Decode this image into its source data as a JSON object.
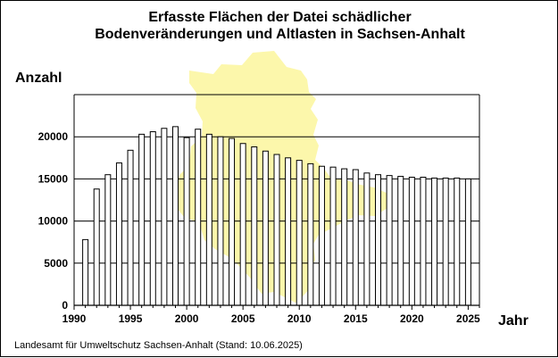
{
  "title_line1": "Erfasste Flächen der Datei schädlicher",
  "title_line2": "Bodenveränderungen und Altlasten in Sachsen-Anhalt",
  "footer": "Landesamt für Umweltschutz Sachsen-Anhalt (Stand: 10.06.2025)",
  "colors": {
    "bar_fill": "#ffffff",
    "bar_stroke": "#000000",
    "map_fill": "#fcf7ab",
    "grid": "#000000"
  },
  "chart_data": {
    "type": "bar",
    "title": "Erfasste Flächen der Datei schädlicher Bodenveränderungen und Altlasten in Sachsen-Anhalt",
    "xlabel": "Jahr",
    "ylabel": "Anzahl",
    "x": [
      1991,
      1992,
      1993,
      1994,
      1995,
      1996,
      1997,
      1998,
      1999,
      2000,
      2001,
      2002,
      2003,
      2004,
      2005,
      2006,
      2007,
      2008,
      2009,
      2010,
      2011,
      2012,
      2013,
      2014,
      2015,
      2016,
      2017,
      2018,
      2019,
      2020,
      2021,
      2022,
      2023,
      2024,
      2025
    ],
    "values": [
      7800,
      13800,
      15500,
      16900,
      18400,
      20300,
      20600,
      21000,
      21200,
      19900,
      20900,
      20300,
      20000,
      19800,
      19200,
      18800,
      18300,
      17900,
      17500,
      17200,
      16800,
      16500,
      16400,
      16200,
      16100,
      15700,
      15500,
      15400,
      15300,
      15200,
      15200,
      15100,
      15100,
      15100,
      15000
    ],
    "xlim": [
      1990,
      2026
    ],
    "ylim": [
      0,
      25000
    ],
    "xticks": [
      "1990",
      "1995",
      "2000",
      "2005",
      "2010",
      "2015",
      "2020",
      "2025"
    ],
    "yticks": [
      "0",
      "5000",
      "10000",
      "15000",
      "20000"
    ],
    "grid": "horizontal",
    "legend": "none"
  }
}
